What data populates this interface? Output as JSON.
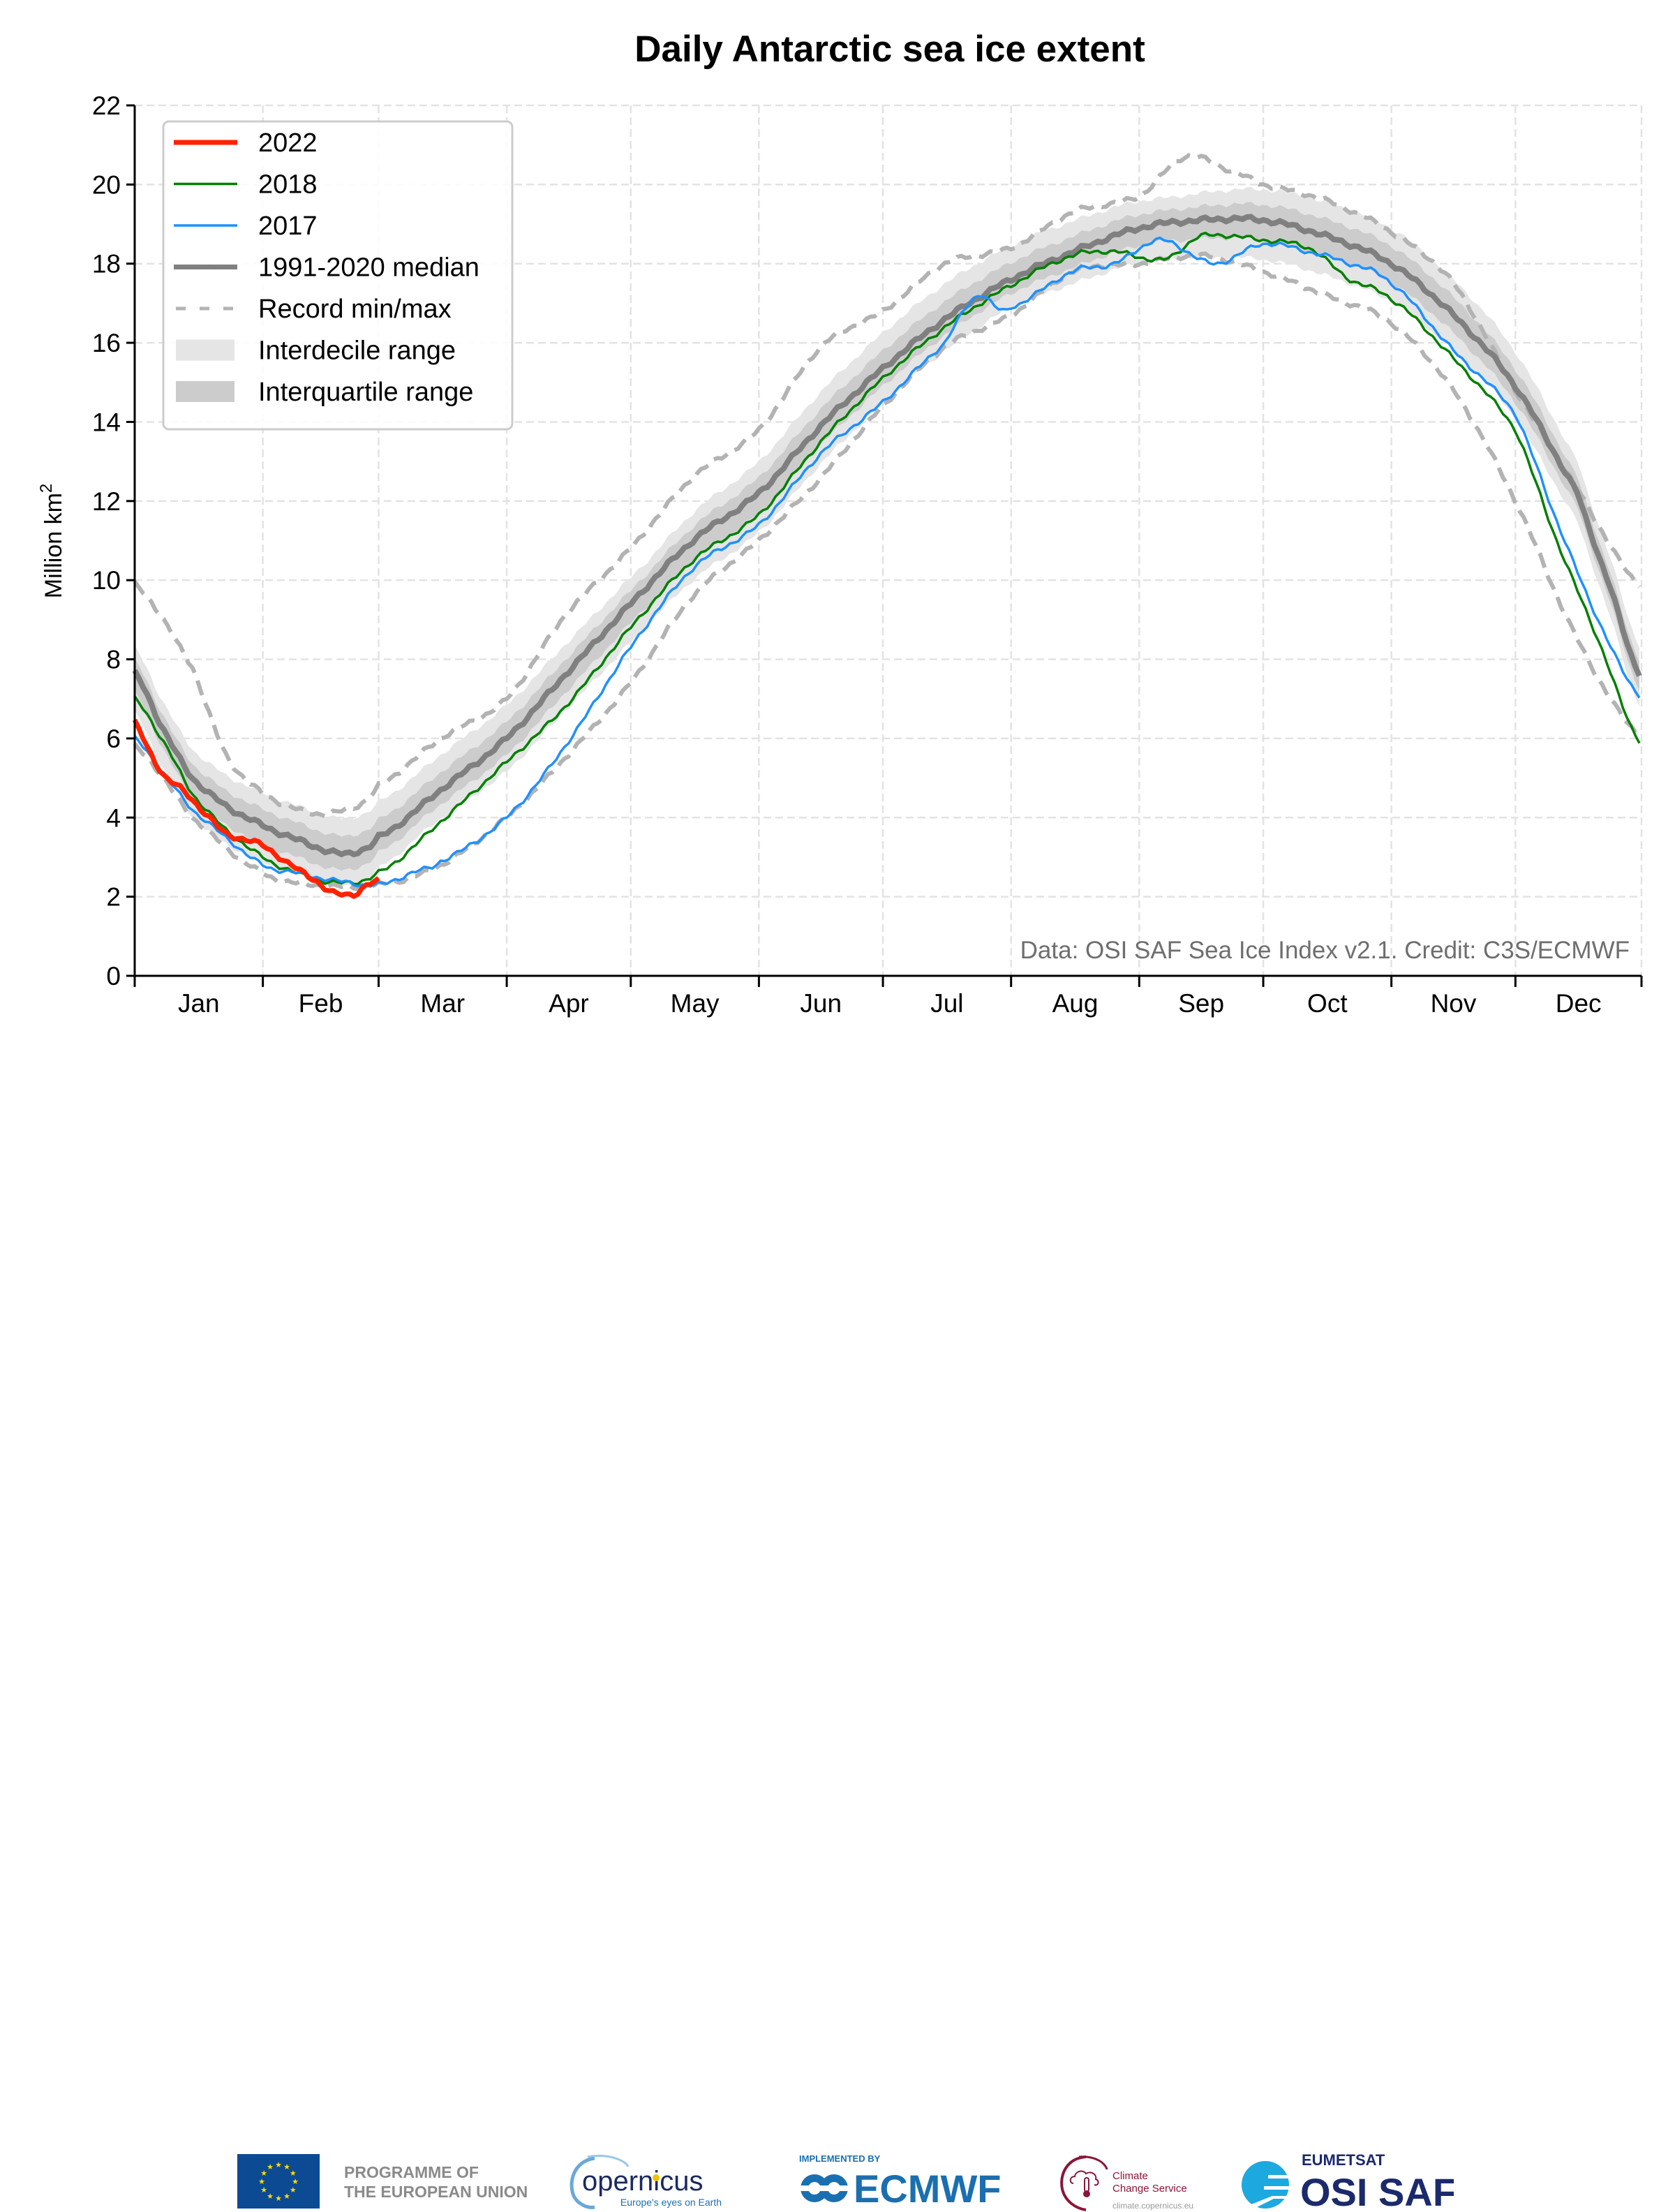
{
  "chart_data": {
    "type": "line",
    "title": "Daily Antarctic sea ice extent",
    "xlabel": "",
    "ylabel": "Million km²",
    "ylabel_main": "Million km",
    "ylabel_sup": "2",
    "ylim": [
      0,
      22
    ],
    "yticks": [
      0,
      2,
      4,
      6,
      8,
      10,
      12,
      14,
      16,
      18,
      20,
      22
    ],
    "xlim_day_of_year": [
      1,
      365
    ],
    "month_start_days": [
      1,
      32,
      60,
      91,
      121,
      152,
      182,
      213,
      244,
      274,
      305,
      335,
      365
    ],
    "month_labels": [
      "Jan",
      "Feb",
      "Mar",
      "Apr",
      "May",
      "Jun",
      "Jul",
      "Aug",
      "Sep",
      "Oct",
      "Nov",
      "Dec"
    ],
    "grid": true,
    "legend_position": "top-left",
    "credit": "Data: OSI SAF Sea Ice Index v2.1. Credit: C3S/ECMWF",
    "legend": [
      {
        "label": "2022",
        "kind": "line",
        "color": "#ff2200"
      },
      {
        "label": "2018",
        "kind": "line",
        "color": "#008000"
      },
      {
        "label": "2017",
        "kind": "line",
        "color": "#1e90ff"
      },
      {
        "label": "1991-2020 median",
        "kind": "line",
        "color": "#808080"
      },
      {
        "label": "Record min/max",
        "kind": "dashed",
        "color": "#b3b3b3"
      },
      {
        "label": "Interdecile range",
        "kind": "band",
        "color": "#e5e5e5"
      },
      {
        "label": "Interquartile range",
        "kind": "band",
        "color": "#cccccc"
      }
    ],
    "series": [
      {
        "name": "1991-2020 median",
        "color": "#808080",
        "points": [
          [
            1,
            7.65
          ],
          [
            8,
            6.2
          ],
          [
            15,
            5.0
          ],
          [
            23,
            4.3
          ],
          [
            32,
            3.8
          ],
          [
            40,
            3.45
          ],
          [
            50,
            3.1
          ],
          [
            55,
            3.15
          ],
          [
            60,
            3.5
          ],
          [
            75,
            4.7
          ],
          [
            91,
            6.0
          ],
          [
            105,
            7.6
          ],
          [
            121,
            9.4
          ],
          [
            136,
            11.0
          ],
          [
            152,
            12.2
          ],
          [
            167,
            13.9
          ],
          [
            182,
            15.35
          ],
          [
            197,
            16.6
          ],
          [
            213,
            17.6
          ],
          [
            228,
            18.3
          ],
          [
            244,
            18.9
          ],
          [
            259,
            19.1
          ],
          [
            274,
            19.1
          ],
          [
            289,
            18.7
          ],
          [
            305,
            18.0
          ],
          [
            320,
            16.7
          ],
          [
            335,
            14.9
          ],
          [
            350,
            12.2
          ],
          [
            358,
            9.8
          ],
          [
            365,
            7.65
          ]
        ]
      },
      {
        "name": "2018",
        "color": "#008000",
        "points": [
          [
            1,
            7.0
          ],
          [
            8,
            5.9
          ],
          [
            15,
            4.6
          ],
          [
            23,
            3.7
          ],
          [
            32,
            3.0
          ],
          [
            40,
            2.6
          ],
          [
            50,
            2.35
          ],
          [
            60,
            2.6
          ],
          [
            75,
            3.9
          ],
          [
            91,
            5.4
          ],
          [
            105,
            6.8
          ],
          [
            121,
            8.8
          ],
          [
            136,
            10.5
          ],
          [
            152,
            11.65
          ],
          [
            167,
            13.5
          ],
          [
            182,
            15.1
          ],
          [
            197,
            16.4
          ],
          [
            213,
            17.45
          ],
          [
            228,
            18.2
          ],
          [
            238,
            18.3
          ],
          [
            250,
            18.1
          ],
          [
            259,
            18.7
          ],
          [
            274,
            18.6
          ],
          [
            285,
            18.4
          ],
          [
            295,
            17.6
          ],
          [
            305,
            17.1
          ],
          [
            320,
            15.6
          ],
          [
            335,
            13.8
          ],
          [
            345,
            11.0
          ],
          [
            355,
            8.5
          ],
          [
            365,
            5.95
          ]
        ]
      },
      {
        "name": "2017",
        "color": "#1e90ff",
        "points": [
          [
            1,
            6.0
          ],
          [
            8,
            5.1
          ],
          [
            15,
            4.2
          ],
          [
            23,
            3.5
          ],
          [
            32,
            2.8
          ],
          [
            40,
            2.6
          ],
          [
            50,
            2.4
          ],
          [
            60,
            2.3
          ],
          [
            68,
            2.6
          ],
          [
            75,
            2.9
          ],
          [
            91,
            4.0
          ],
          [
            105,
            5.8
          ],
          [
            121,
            8.3
          ],
          [
            136,
            10.3
          ],
          [
            152,
            11.4
          ],
          [
            167,
            13.2
          ],
          [
            182,
            14.5
          ],
          [
            197,
            16.0
          ],
          [
            205,
            17.2
          ],
          [
            210,
            16.85
          ],
          [
            213,
            16.9
          ],
          [
            228,
            17.8
          ],
          [
            238,
            18.0
          ],
          [
            249,
            18.6
          ],
          [
            262,
            18.0
          ],
          [
            274,
            18.5
          ],
          [
            285,
            18.3
          ],
          [
            295,
            18.0
          ],
          [
            305,
            17.5
          ],
          [
            320,
            15.8
          ],
          [
            335,
            14.2
          ],
          [
            345,
            11.5
          ],
          [
            355,
            9.0
          ],
          [
            365,
            7.1
          ]
        ]
      },
      {
        "name": "2022",
        "color": "#ff2200",
        "points": [
          [
            1,
            6.4
          ],
          [
            4,
            5.8
          ],
          [
            8,
            5.05
          ],
          [
            13,
            4.67
          ],
          [
            18,
            4.1
          ],
          [
            23,
            3.6
          ],
          [
            32,
            3.3
          ],
          [
            38,
            2.85
          ],
          [
            45,
            2.4
          ],
          [
            49,
            2.1
          ],
          [
            54,
            2.05
          ],
          [
            57,
            2.3
          ],
          [
            60,
            2.4
          ]
        ]
      },
      {
        "name": "Record max",
        "color": "#b3b3b3",
        "points": [
          [
            1,
            9.9
          ],
          [
            15,
            7.8
          ],
          [
            23,
            5.6
          ],
          [
            32,
            4.6
          ],
          [
            45,
            4.1
          ],
          [
            55,
            4.3
          ],
          [
            60,
            4.8
          ],
          [
            75,
            6.0
          ],
          [
            91,
            7.0
          ],
          [
            105,
            9.1
          ],
          [
            121,
            10.8
          ],
          [
            136,
            12.6
          ],
          [
            152,
            13.8
          ],
          [
            167,
            15.9
          ],
          [
            182,
            16.8
          ],
          [
            197,
            18.0
          ],
          [
            213,
            18.4
          ],
          [
            228,
            19.3
          ],
          [
            244,
            19.7
          ],
          [
            255,
            20.7
          ],
          [
            265,
            20.4
          ],
          [
            274,
            20.0
          ],
          [
            289,
            19.6
          ],
          [
            305,
            18.8
          ],
          [
            320,
            17.5
          ],
          [
            335,
            14.8
          ],
          [
            350,
            12.3
          ],
          [
            365,
            9.9
          ]
        ]
      },
      {
        "name": "Record min",
        "color": "#b3b3b3",
        "points": [
          [
            1,
            5.8
          ],
          [
            15,
            4.0
          ],
          [
            32,
            2.6
          ],
          [
            45,
            2.3
          ],
          [
            60,
            2.3
          ],
          [
            75,
            2.8
          ],
          [
            91,
            4.0
          ],
          [
            105,
            5.5
          ],
          [
            121,
            7.4
          ],
          [
            136,
            9.6
          ],
          [
            152,
            11.0
          ],
          [
            167,
            12.6
          ],
          [
            182,
            14.4
          ],
          [
            197,
            15.9
          ],
          [
            213,
            16.7
          ],
          [
            228,
            17.8
          ],
          [
            244,
            18.0
          ],
          [
            259,
            18.2
          ],
          [
            274,
            17.8
          ],
          [
            289,
            17.2
          ],
          [
            305,
            16.5
          ],
          [
            320,
            14.8
          ],
          [
            335,
            12.0
          ],
          [
            350,
            8.5
          ],
          [
            365,
            6.1
          ]
        ]
      }
    ],
    "bands": [
      {
        "name": "Interdecile range",
        "color": "#e5e5e5",
        "offset_below": 1.0,
        "offset_above": 0.9
      },
      {
        "name": "Interquartile range",
        "color": "#cccccc",
        "offset_below": 0.5,
        "offset_above": 0.45
      }
    ]
  },
  "footer": {
    "eu_line1": "PROGRAMME OF",
    "eu_line2": "THE EUROPEAN UNION",
    "copernicus_word": "opernicus",
    "copernicus_c": "C",
    "copernicus_tagline": "Europe's eyes on Earth",
    "ecmwf_implemented": "IMPLEMENTED BY",
    "ecmwf_name": "ECMWF",
    "c3s_line1": "Climate",
    "c3s_line2": "Change Service",
    "c3s_url": "climate.copernicus.eu",
    "eumetsat": "EUMETSAT",
    "osisaf": "OSI SAF",
    "colors": {
      "eu_blue": "#0c4a93",
      "eu_star": "#ffdd00",
      "copernicus_navy": "#1b2a5e",
      "copernicus_blue": "#1a6fb0",
      "ecmwf_blue": "#1a6fb0",
      "c3s_maroon": "#8b1538",
      "eumetsat_navy": "#1b2a6b",
      "osi_cyan": "#1ea8e0"
    }
  }
}
